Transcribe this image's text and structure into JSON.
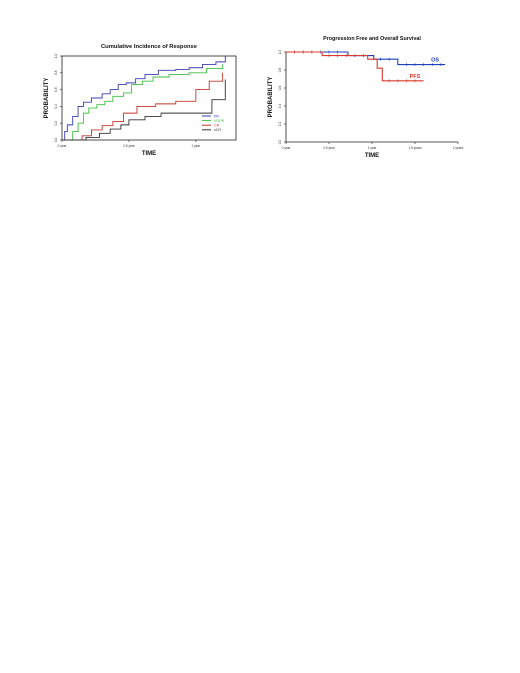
{
  "chart_data": [
    {
      "type": "line",
      "step": true,
      "title": "Cumulative Incidence of Response",
      "xlabel": "TIME",
      "ylabel": "PROBABILITY",
      "xlim": [
        0,
        1.3
      ],
      "ylim": [
        0,
        1.0
      ],
      "x_ticks": [
        0,
        0.5,
        1.0
      ],
      "x_tick_labels": [
        "0 year",
        "0.5 year",
        "1 year"
      ],
      "y_ticks": [
        0.0,
        0.2,
        0.4,
        0.6,
        0.8,
        1.0
      ],
      "y_tick_labels": [
        "0.0",
        "0.2",
        "0.4",
        "0.6",
        "0.8",
        "1.0"
      ],
      "grid": false,
      "legend_position": "bottom-right",
      "series": [
        {
          "name": "PR",
          "color": "#3a3fb0",
          "points": [
            [
              0,
              0
            ],
            [
              0.02,
              0.1
            ],
            [
              0.04,
              0.18
            ],
            [
              0.08,
              0.28
            ],
            [
              0.12,
              0.4
            ],
            [
              0.16,
              0.45
            ],
            [
              0.22,
              0.5
            ],
            [
              0.3,
              0.55
            ],
            [
              0.36,
              0.6
            ],
            [
              0.42,
              0.66
            ],
            [
              0.48,
              0.68
            ],
            [
              0.55,
              0.73
            ],
            [
              0.62,
              0.78
            ],
            [
              0.72,
              0.83
            ],
            [
              0.85,
              0.84
            ],
            [
              0.95,
              0.86
            ],
            [
              1.05,
              0.9
            ],
            [
              1.15,
              0.93
            ],
            [
              1.22,
              1.0
            ]
          ]
        },
        {
          "name": "VGPR",
          "color": "#3fbf3f",
          "points": [
            [
              0,
              0
            ],
            [
              0.08,
              0.1
            ],
            [
              0.12,
              0.2
            ],
            [
              0.16,
              0.32
            ],
            [
              0.2,
              0.38
            ],
            [
              0.26,
              0.42
            ],
            [
              0.32,
              0.46
            ],
            [
              0.38,
              0.52
            ],
            [
              0.46,
              0.56
            ],
            [
              0.52,
              0.66
            ],
            [
              0.6,
              0.7
            ],
            [
              0.68,
              0.75
            ],
            [
              0.8,
              0.78
            ],
            [
              0.95,
              0.8
            ],
            [
              1.08,
              0.85
            ],
            [
              1.2,
              0.9
            ]
          ]
        },
        {
          "name": "CR",
          "color": "#c0392b",
          "points": [
            [
              0,
              0
            ],
            [
              0.15,
              0.05
            ],
            [
              0.22,
              0.12
            ],
            [
              0.3,
              0.17
            ],
            [
              0.38,
              0.22
            ],
            [
              0.46,
              0.32
            ],
            [
              0.56,
              0.4
            ],
            [
              0.7,
              0.43
            ],
            [
              0.85,
              0.46
            ],
            [
              1.0,
              0.6
            ],
            [
              1.1,
              0.7
            ],
            [
              1.2,
              0.8
            ]
          ]
        },
        {
          "name": "sCR",
          "color": "#333333",
          "points": [
            [
              0,
              0
            ],
            [
              0.18,
              0.03
            ],
            [
              0.28,
              0.08
            ],
            [
              0.36,
              0.13
            ],
            [
              0.44,
              0.18
            ],
            [
              0.5,
              0.24
            ],
            [
              0.62,
              0.28
            ],
            [
              0.74,
              0.32
            ],
            [
              0.9,
              0.32
            ],
            [
              1.12,
              0.48
            ],
            [
              1.22,
              0.72
            ]
          ]
        }
      ]
    },
    {
      "type": "line",
      "step": true,
      "title": "Progression Free and Overall Survival",
      "xlabel": "TIME",
      "ylabel": "PROBABILITY",
      "xlim": [
        0,
        2.0
      ],
      "ylim": [
        0,
        1.0
      ],
      "x_ticks": [
        0,
        0.5,
        1.0,
        1.5,
        2.0
      ],
      "x_tick_labels": [
        "0 year",
        "0.5 year",
        "1 year",
        "1.5 years",
        "2 years"
      ],
      "y_ticks": [
        0.0,
        0.2,
        0.4,
        0.6,
        0.8,
        1.0
      ],
      "y_tick_labels": [
        "0.0",
        "0.2",
        "0.4",
        "0.6",
        "0.8",
        "1.0"
      ],
      "grid": false,
      "series": [
        {
          "name": "OS",
          "color": "#1f3fbf",
          "points": [
            [
              0,
              1.0
            ],
            [
              0.72,
              0.96
            ],
            [
              1.02,
              0.92
            ],
            [
              1.3,
              0.86
            ],
            [
              1.85,
              0.86
            ]
          ],
          "censor": [
            0.1,
            0.2,
            0.3,
            0.4,
            0.5,
            0.6,
            0.8,
            0.9,
            1.1,
            1.2,
            1.4,
            1.5,
            1.6,
            1.7,
            1.8
          ]
        },
        {
          "name": "PFS",
          "color": "#d93a2b",
          "points": [
            [
              0,
              1.0
            ],
            [
              0.42,
              0.96
            ],
            [
              0.82,
              0.96
            ],
            [
              0.95,
              0.92
            ],
            [
              1.06,
              0.82
            ],
            [
              1.12,
              0.68
            ],
            [
              1.6,
              0.68
            ]
          ],
          "censor": [
            0.1,
            0.2,
            0.3,
            0.5,
            0.6,
            0.7,
            0.9,
            1.2,
            1.3,
            1.4,
            1.5
          ]
        }
      ]
    }
  ]
}
